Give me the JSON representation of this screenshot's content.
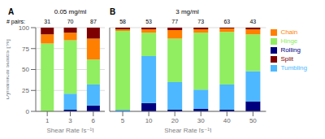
{
  "chart_data": [
    {
      "type": "bar",
      "title": "0.05 mg/ml",
      "annotations": [
        "A"
      ],
      "xlabel": "Shear Rate [s⁻¹]",
      "ylabel": "Dynamical states [%]",
      "categories": [
        "1",
        "3",
        "6"
      ],
      "series": [
        {
          "name": "Rolling",
          "color": "#00007f",
          "values": [
            0,
            2,
            7
          ]
        },
        {
          "name": "Tumbling",
          "color": "#4db8ff",
          "values": [
            0,
            19,
            25
          ]
        },
        {
          "name": "Hinge",
          "color": "#90ee60",
          "values": [
            81,
            64,
            30
          ]
        },
        {
          "name": "Chain",
          "color": "#ff7f00",
          "values": [
            11,
            9,
            25
          ]
        },
        {
          "name": "Split",
          "color": "#7f0000",
          "values": [
            8,
            6,
            13
          ]
        }
      ],
      "stacked": true,
      "ylim": [
        0,
        100
      ],
      "yticks": [
        0,
        25,
        50,
        75,
        100
      ],
      "grid": true,
      "pairs_label": "# pairs:",
      "pairs": [
        31,
        70,
        87
      ]
    },
    {
      "type": "bar",
      "title": "3 mg/ml",
      "annotations": [
        "B"
      ],
      "xlabel": "Shear Rate [s⁻¹]",
      "categories": [
        "5",
        "10",
        "20",
        "30",
        "40",
        "50"
      ],
      "series": [
        {
          "name": "Rolling",
          "color": "#00007f",
          "values": [
            0,
            10,
            2,
            3,
            2,
            12
          ]
        },
        {
          "name": "Tumbling",
          "color": "#4db8ff",
          "values": [
            2,
            56,
            33,
            23,
            30,
            36
          ]
        },
        {
          "name": "Hinge",
          "color": "#90ee60",
          "values": [
            94,
            28,
            52,
            68,
            63,
            44
          ]
        },
        {
          "name": "Chain",
          "color": "#ff7f00",
          "values": [
            2,
            4,
            10,
            4,
            4,
            6
          ]
        },
        {
          "name": "Split",
          "color": "#7f0000",
          "values": [
            2,
            2,
            3,
            2,
            1,
            2
          ]
        }
      ],
      "stacked": true,
      "ylim": [
        0,
        100
      ],
      "yticks": [
        0,
        25,
        50,
        75,
        100
      ],
      "grid": true,
      "tick_labels": "x",
      "legend": "right",
      "pairs": [
        58,
        53,
        77,
        73,
        63,
        43
      ]
    }
  ]
}
